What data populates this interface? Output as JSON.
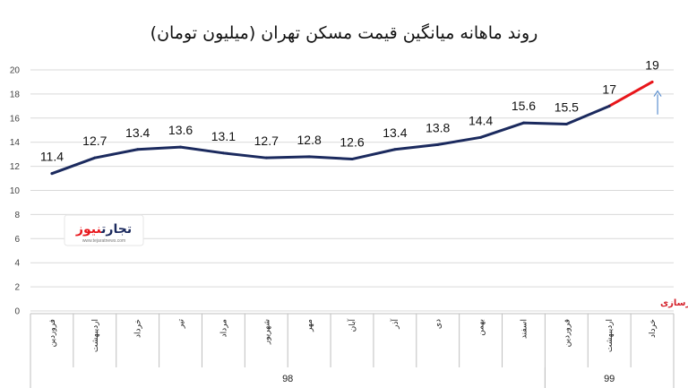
{
  "title": "روند ماهانه میانگین قیمت مسکن تهران (میلیون تومان)",
  "source": "منبع: وزارت راه و شهرسازی",
  "logo": {
    "brand": "تجارت‌نیوز",
    "url": "www.tejaratnews.com"
  },
  "chart_data": {
    "type": "line",
    "title": "روند ماهانه میانگین قیمت مسکن تهران (میلیون تومان)",
    "xlabel": "",
    "ylabel": "",
    "ylim": [
      0,
      20
    ],
    "yticks": [
      0,
      2,
      4,
      6,
      8,
      10,
      12,
      14,
      16,
      18,
      20
    ],
    "grid": true,
    "categories": [
      "فروردین",
      "اردیبهشت",
      "خرداد",
      "تیر",
      "مرداد",
      "شهریور",
      "مهر",
      "آبان",
      "آذر",
      "دی",
      "بهمن",
      "اسفند",
      "فروردین",
      "اردیبهشت",
      "خرداد"
    ],
    "groups": [
      {
        "label": "98",
        "start": 0,
        "end": 11
      },
      {
        "label": "99",
        "start": 12,
        "end": 14
      }
    ],
    "series": [
      {
        "values": [
          11.4,
          12.7,
          13.4,
          13.6,
          13.1,
          12.7,
          12.8,
          12.6,
          13.4,
          13.8,
          14.4,
          15.6,
          15.5,
          17,
          19
        ],
        "color": "#1b2a5e",
        "highlight_color": "#e8161b",
        "highlight_from": 13
      }
    ],
    "data_labels": [
      "11.4",
      "12.7",
      "13.4",
      "13.6",
      "13.1",
      "12.7",
      "12.8",
      "12.6",
      "13.4",
      "13.8",
      "14.4",
      "15.6",
      "15.5",
      "17",
      "19"
    ],
    "annotation": {
      "type": "up-arrow",
      "at_index": 14,
      "color": "#5b8fcf"
    }
  }
}
